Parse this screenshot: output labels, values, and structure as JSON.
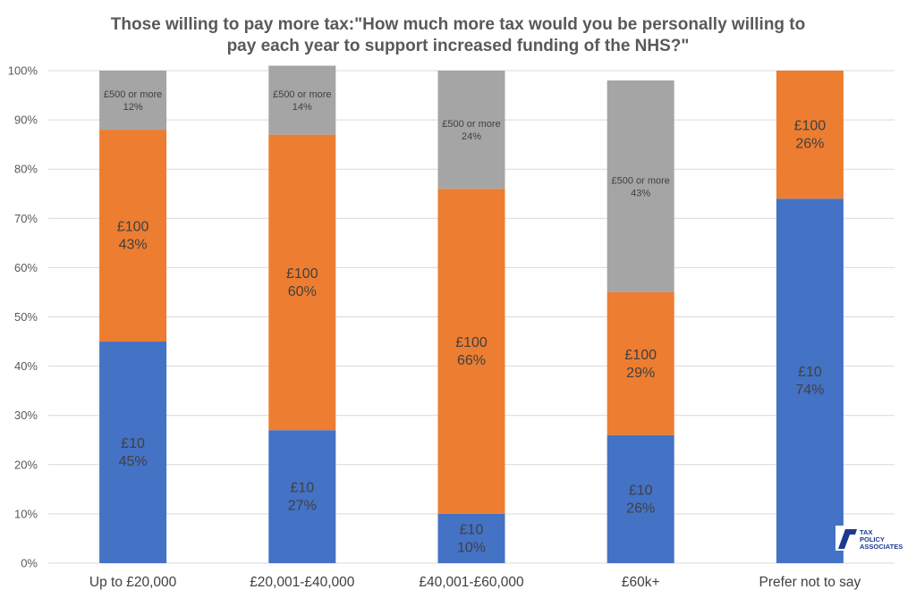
{
  "chart_data": {
    "type": "bar",
    "stacked": true,
    "title_lines": [
      "Those willing to pay more tax:\"How much more tax would you be personally willing to",
      "pay each year to support increased funding of the NHS?\""
    ],
    "categories": [
      "Up to £20,000",
      "£20,001-£40,000",
      "£40,001-£60,000",
      "£60k+",
      "Prefer not to say"
    ],
    "y_ticks": [
      "0%",
      "10%",
      "20%",
      "30%",
      "40%",
      "50%",
      "60%",
      "70%",
      "80%",
      "90%",
      "100%"
    ],
    "ylim": [
      0,
      100
    ],
    "grid": true,
    "series": [
      {
        "key": "s10",
        "values": [
          45,
          27,
          10,
          26,
          74
        ],
        "labels": [
          "£10",
          "£10",
          "£10",
          "£10",
          "£10"
        ],
        "pct_labels": [
          "45%",
          "27%",
          "10%",
          "26%",
          "74%"
        ],
        "color": "#4472C4"
      },
      {
        "key": "s100",
        "values": [
          43,
          60,
          66,
          29,
          26
        ],
        "labels": [
          "£100",
          "£100",
          "£100",
          "£100",
          "£100"
        ],
        "pct_labels": [
          "43%",
          "60%",
          "66%",
          "29%",
          "26%"
        ],
        "color": "#ED7D31"
      },
      {
        "key": "s500",
        "values": [
          12,
          14,
          24,
          43,
          0
        ],
        "labels": [
          "£500 or more",
          "£500 or more",
          "£500 or more",
          "£500 or more",
          ""
        ],
        "pct_labels": [
          "12%",
          "14%",
          "24%",
          "43%",
          ""
        ],
        "color": "#A5A5A5"
      }
    ]
  },
  "logo": {
    "lines": [
      "TAX",
      "POLICY",
      "ASSOCIATES"
    ],
    "color": "#1a3a8f",
    "icon": "tax-policy-associates-logo-icon"
  }
}
